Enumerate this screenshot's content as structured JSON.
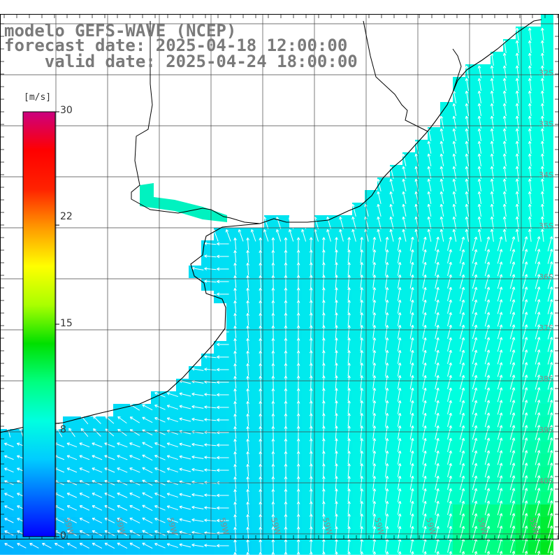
{
  "title": {
    "line1": "modelo GEFS-WAVE (NCEP)",
    "line2": "forecast date: 2025-04-18 12:00:00",
    "line3": "    valid date: 2025-04-24 18:00:00"
  },
  "colorbar": {
    "unit": "[m/s]",
    "ticks": [
      "30",
      "22",
      "15",
      "8",
      "0"
    ],
    "tick_values": [
      30,
      22,
      15,
      8,
      0
    ],
    "min": 0,
    "max": 30,
    "colors": [
      "#0000ff",
      "#0066ff",
      "#00ccff",
      "#00ffe0",
      "#00ff80",
      "#00e000",
      "#aaff00",
      "#ffff00",
      "#ff9900",
      "#ff2200",
      "#ff0000",
      "#cc0080"
    ]
  },
  "map": {
    "lat_labels": [
      "32S",
      "33S",
      "34S",
      "35S",
      "36S",
      "37S",
      "38S",
      "39S",
      "40S"
    ],
    "lon_labels": [
      "59W",
      "59W",
      "59W",
      "59W",
      "59W",
      "59W",
      "59W",
      "59W",
      "59W",
      "59W"
    ],
    "wind_direction": "from south-southeast",
    "colors": {
      "land": "#ffffff",
      "coast": "#000000",
      "grid": "#333333",
      "arrow": "#ffffff"
    }
  }
}
